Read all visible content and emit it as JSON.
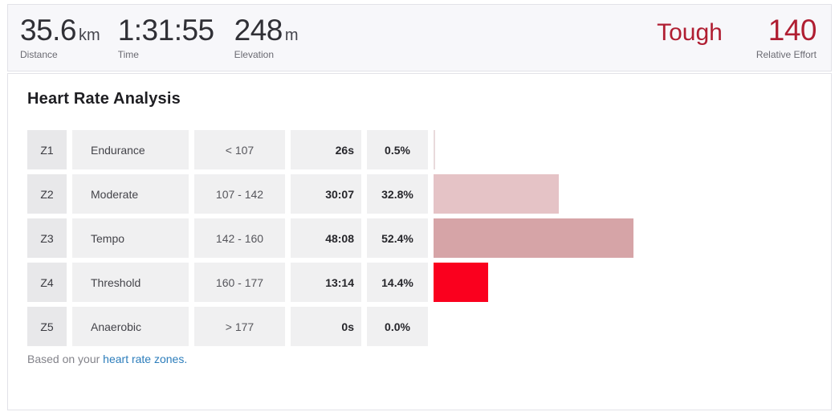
{
  "stats": {
    "items": [
      {
        "value": "35.6",
        "unit": "km",
        "label": "Distance"
      },
      {
        "value": "1:31:55",
        "unit": "",
        "label": "Time"
      },
      {
        "value": "248",
        "unit": "m",
        "label": "Elevation"
      }
    ],
    "relative_effort": {
      "descriptor": "Tough",
      "value": "140",
      "label": "Relative Effort",
      "color": "#b01e32"
    }
  },
  "heart_rate": {
    "title": "Heart Rate Analysis",
    "zones": [
      {
        "zone": "Z1",
        "name": "Endurance",
        "range": "< 107",
        "time": "26s",
        "percent": "0.5%",
        "percent_value": 0.5,
        "bar_color": "#e9dadc"
      },
      {
        "zone": "Z2",
        "name": "Moderate",
        "range": "107 - 142",
        "time": "30:07",
        "percent": "32.8%",
        "percent_value": 32.8,
        "bar_color": "#e5c3c6"
      },
      {
        "zone": "Z3",
        "name": "Tempo",
        "range": "142 - 160",
        "time": "48:08",
        "percent": "52.4%",
        "percent_value": 52.4,
        "bar_color": "#d6a4a7"
      },
      {
        "zone": "Z4",
        "name": "Threshold",
        "range": "160 - 177",
        "time": "13:14",
        "percent": "14.4%",
        "percent_value": 14.4,
        "bar_color": "#fa001e"
      },
      {
        "zone": "Z5",
        "name": "Anaerobic",
        "range": "> 177",
        "time": "0s",
        "percent": "0.0%",
        "percent_value": 0.0,
        "bar_color": "#b01e32"
      }
    ],
    "footer": {
      "prefix": "Based on your ",
      "link": "heart rate zones."
    }
  }
}
